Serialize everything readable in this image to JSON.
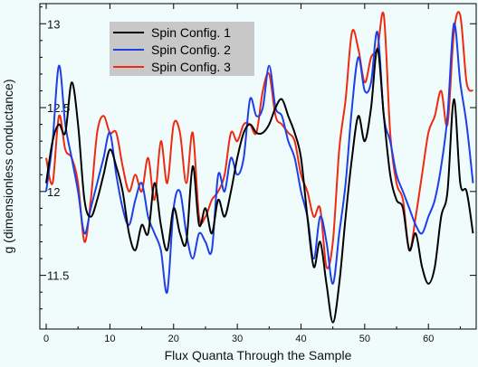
{
  "chart_data": {
    "type": "line",
    "xlabel": "Flux Quanta Through the Sample",
    "ylabel": "g (dimensionless conductance)",
    "xlim": [
      -1,
      67.5
    ],
    "ylim": [
      11.18,
      13.12
    ],
    "x_ticks": [
      0,
      10,
      20,
      30,
      40,
      50,
      60
    ],
    "y_ticks": [
      11.5,
      12,
      12.5,
      13
    ],
    "y_tick_labels": [
      "11.5",
      "12",
      "12.5",
      "13"
    ],
    "grid": false,
    "legend_position": "top-left",
    "colors": {
      "plot_background": "#f0fcfc",
      "axis": "#000000",
      "legend_background": "#c8c8c8"
    },
    "series": [
      {
        "name": "Spin Config. 1",
        "color": "#000000",
        "x": [
          0,
          1,
          2,
          3,
          4,
          5,
          6,
          7,
          8,
          9,
          10,
          11,
          12,
          13,
          14,
          15,
          16,
          17,
          18,
          19,
          20,
          21,
          22,
          23,
          24,
          25,
          26,
          27,
          28,
          29,
          30,
          31,
          32,
          33,
          34,
          35,
          36,
          37,
          38,
          39,
          40,
          41,
          42,
          43,
          44,
          45,
          46,
          47,
          48,
          49,
          50,
          51,
          52,
          53,
          54,
          55,
          56,
          57,
          58,
          59,
          60,
          61,
          62,
          63,
          64,
          65,
          66,
          67
        ],
        "values": [
          12.05,
          12.3,
          12.4,
          12.35,
          12.65,
          12.4,
          11.95,
          11.85,
          11.95,
          12.1,
          12.25,
          12.15,
          12.0,
          11.75,
          11.65,
          11.8,
          11.75,
          12.05,
          11.8,
          11.65,
          11.9,
          11.75,
          11.7,
          12.15,
          11.8,
          11.9,
          11.75,
          11.95,
          11.85,
          12.0,
          12.2,
          12.35,
          12.4,
          12.35,
          12.35,
          12.4,
          12.5,
          12.55,
          12.45,
          12.35,
          12.2,
          11.85,
          11.55,
          11.7,
          11.45,
          11.22,
          11.45,
          11.85,
          12.2,
          12.45,
          12.3,
          12.5,
          12.85,
          12.45,
          12.1,
          11.95,
          11.9,
          11.65,
          11.75,
          11.55,
          11.45,
          11.55,
          11.85,
          12.0,
          12.55,
          12.05,
          12.0,
          11.75
        ]
      },
      {
        "name": "Spin Config. 2",
        "color": "#1f3fe6",
        "x": [
          0,
          1,
          2,
          3,
          4,
          5,
          6,
          7,
          8,
          9,
          10,
          11,
          12,
          13,
          14,
          15,
          16,
          17,
          18,
          19,
          20,
          21,
          22,
          23,
          24,
          25,
          26,
          27,
          28,
          29,
          30,
          31,
          32,
          33,
          34,
          35,
          36,
          37,
          38,
          39,
          40,
          41,
          42,
          43,
          44,
          45,
          46,
          47,
          48,
          49,
          50,
          51,
          52,
          53,
          54,
          55,
          56,
          57,
          58,
          59,
          60,
          61,
          62,
          63,
          64,
          65,
          66,
          67
        ],
        "values": [
          12.0,
          12.3,
          12.75,
          12.4,
          12.2,
          12.0,
          11.75,
          11.9,
          12.05,
          12.2,
          12.35,
          12.1,
          11.9,
          11.8,
          11.95,
          12.05,
          11.85,
          11.75,
          11.65,
          11.4,
          11.9,
          12.0,
          11.75,
          11.6,
          11.75,
          11.7,
          11.65,
          12.1,
          12.0,
          12.2,
          12.1,
          12.2,
          12.55,
          12.45,
          12.5,
          12.75,
          12.5,
          12.45,
          12.3,
          12.2,
          12.0,
          11.85,
          11.6,
          11.85,
          11.7,
          11.45,
          11.75,
          12.05,
          12.5,
          12.8,
          12.6,
          12.65,
          12.95,
          12.45,
          12.3,
          12.1,
          12.0,
          11.9,
          11.8,
          11.75,
          11.85,
          11.95,
          12.15,
          12.45,
          13.0,
          12.65,
          12.4,
          12.05
        ]
      },
      {
        "name": "Spin Config. 3",
        "color": "#ee2a10",
        "x": [
          0,
          1,
          2,
          3,
          4,
          5,
          6,
          7,
          8,
          9,
          10,
          11,
          12,
          13,
          14,
          15,
          16,
          17,
          18,
          19,
          20,
          21,
          22,
          23,
          24,
          25,
          26,
          27,
          28,
          29,
          30,
          31,
          32,
          33,
          34,
          35,
          36,
          37,
          38,
          39,
          40,
          41,
          42,
          43,
          44,
          45,
          46,
          47,
          48,
          49,
          50,
          51,
          52,
          53,
          54,
          55,
          56,
          57,
          58,
          59,
          60,
          61,
          62,
          63,
          64,
          65,
          66,
          67
        ],
        "values": [
          12.2,
          12.05,
          12.45,
          12.25,
          12.2,
          12.05,
          11.7,
          11.95,
          12.35,
          12.45,
          12.35,
          12.35,
          12.15,
          12.0,
          12.1,
          12.0,
          12.2,
          11.95,
          12.3,
          12.05,
          12.4,
          12.35,
          12.05,
          12.35,
          11.85,
          11.85,
          11.95,
          12.0,
          12.1,
          12.35,
          12.3,
          12.4,
          12.4,
          12.35,
          12.6,
          12.7,
          12.45,
          12.4,
          12.35,
          12.3,
          12.1,
          12.0,
          11.85,
          11.9,
          11.55,
          11.7,
          12.25,
          12.55,
          12.95,
          12.85,
          12.65,
          12.8,
          12.85,
          13.05,
          12.35,
          12.05,
          11.95,
          11.65,
          11.85,
          12.1,
          12.35,
          12.45,
          12.6,
          12.4,
          12.95,
          13.05,
          12.65,
          12.6
        ]
      }
    ]
  }
}
